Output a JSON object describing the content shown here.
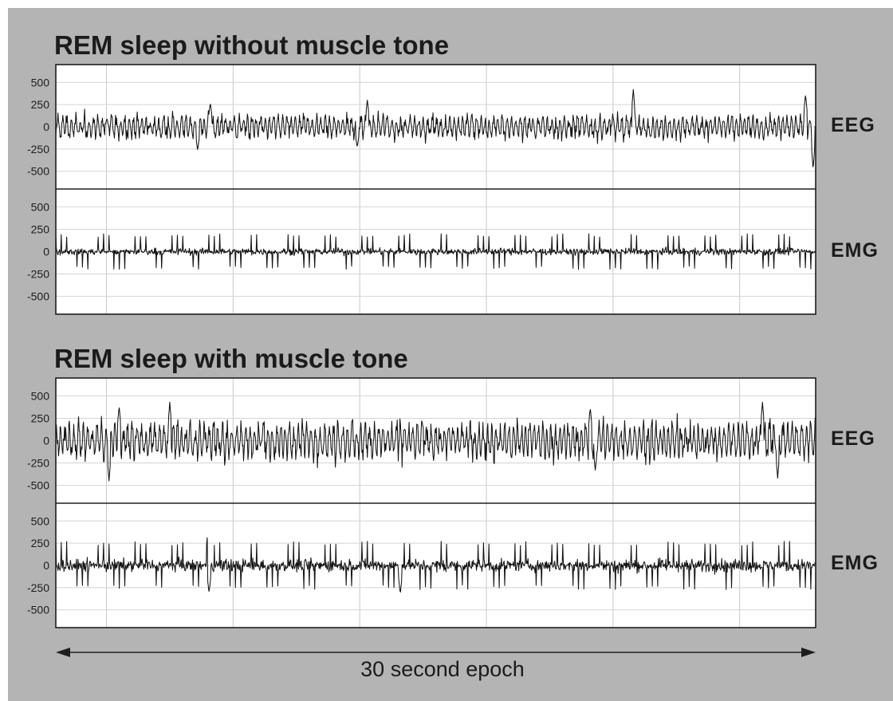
{
  "chart_data": [
    {
      "type": "line",
      "title": "REM sleep without muscle tone",
      "epoch_seconds": 30,
      "channels": [
        {
          "name": "EEG",
          "ylim": [
            -700,
            700
          ],
          "yticks": [
            500,
            250,
            0,
            -250,
            -500
          ],
          "ytick_labels": [
            "500",
            "250",
            "0",
            "-250",
            "-500"
          ],
          "amplitude_typical": 120,
          "peaks": [
            {
              "t": 5.6,
              "value": -270
            },
            {
              "t": 6.1,
              "value": 270
            },
            {
              "t": 11.9,
              "value": -230
            },
            {
              "t": 12.3,
              "value": 300
            },
            {
              "t": 22.8,
              "value": 420
            },
            {
              "t": 29.6,
              "value": 370
            },
            {
              "t": 29.9,
              "value": -480
            }
          ]
        },
        {
          "name": "EMG",
          "ylim": [
            -700,
            700
          ],
          "yticks": [
            500,
            250,
            0,
            -250,
            -500
          ],
          "ytick_labels": [
            "500",
            "250",
            "0",
            "-250",
            "-500"
          ],
          "burst_amplitude": 190,
          "baseline_amplitude": 30,
          "burst_rate_per_s": 4.8
        }
      ],
      "grid": true,
      "x_gridline_seconds": [
        2,
        7,
        12,
        17,
        22,
        27
      ]
    },
    {
      "type": "line",
      "title": "REM sleep with muscle tone",
      "epoch_seconds": 30,
      "channels": [
        {
          "name": "EEG",
          "ylim": [
            -700,
            700
          ],
          "yticks": [
            500,
            250,
            0,
            -250,
            -500
          ],
          "ytick_labels": [
            "500",
            "250",
            "0",
            "-250",
            "-500"
          ],
          "amplitude_typical": 190,
          "peaks": [
            {
              "t": 2.1,
              "value": -450
            },
            {
              "t": 2.5,
              "value": 390
            },
            {
              "t": 4.5,
              "value": 430
            },
            {
              "t": 21.1,
              "value": 370
            },
            {
              "t": 21.3,
              "value": -330
            },
            {
              "t": 27.9,
              "value": 430
            },
            {
              "t": 28.5,
              "value": -420
            }
          ]
        },
        {
          "name": "EMG",
          "ylim": [
            -700,
            700
          ],
          "yticks": [
            500,
            250,
            0,
            -250,
            -500
          ],
          "ytick_labels": [
            "500",
            "250",
            "0",
            "-250",
            "-500"
          ],
          "burst_amplitude": 260,
          "baseline_amplitude": 55,
          "burst_rate_per_s": 4.8,
          "peaks": [
            {
              "t": 6.0,
              "value": 380
            },
            {
              "t": 6.05,
              "value": -310
            },
            {
              "t": 13.6,
              "value": -320
            }
          ]
        }
      ],
      "grid": true,
      "x_gridline_seconds": [
        2,
        7,
        12,
        17,
        22,
        27
      ]
    }
  ],
  "epoch": {
    "label": "30 second epoch"
  }
}
